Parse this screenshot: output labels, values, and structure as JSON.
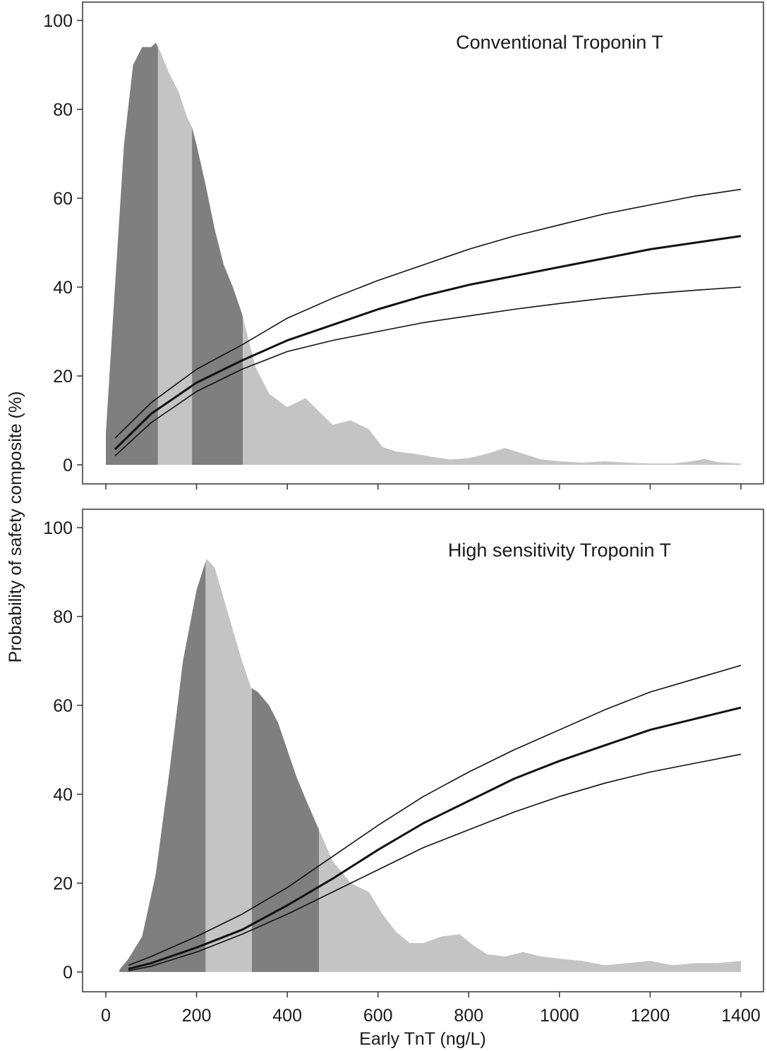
{
  "figure": {
    "ylabel": "Probability of safety composite (%)",
    "xlabel": "Early TnT (ng/L)"
  },
  "colors": {
    "density_light": "#c4c4c4",
    "density_dark": "#7f7f7f",
    "curve": "#111111",
    "frame": "#333333"
  },
  "chart_data": [
    {
      "type": "area",
      "title": "Conventional Troponin T",
      "xlim": [
        0,
        1400
      ],
      "ylim": [
        0,
        100
      ],
      "yticks": [
        0,
        20,
        40,
        60,
        80,
        100
      ],
      "xticks": [
        0,
        200,
        400,
        600,
        800,
        1000,
        1200,
        1400
      ],
      "xtick_labels_shown": false,
      "density": {
        "x": [
          0,
          20,
          40,
          60,
          80,
          100,
          110,
          120,
          140,
          160,
          180,
          190,
          200,
          220,
          240,
          260,
          280,
          300,
          330,
          360,
          400,
          440,
          470,
          500,
          540,
          580,
          610,
          640,
          680,
          720,
          760,
          800,
          840,
          880,
          920,
          960,
          1000,
          1050,
          1100,
          1150,
          1200,
          1250,
          1290,
          1320,
          1350,
          1400
        ],
        "y": [
          7,
          40,
          72,
          90,
          94,
          94,
          95,
          93,
          88,
          84,
          78,
          76,
          72,
          63,
          53,
          45,
          40,
          34,
          22,
          16,
          13,
          15,
          12,
          9,
          10,
          8,
          4,
          3,
          2.5,
          1.8,
          1.2,
          1.5,
          2.5,
          3.8,
          2.5,
          1.2,
          0.8,
          0.5,
          0.8,
          0.5,
          0.3,
          0.3,
          0.8,
          1.3,
          0.6,
          0.3
        ]
      },
      "bands": [
        {
          "from": 0,
          "to": 115,
          "shade": "dark"
        },
        {
          "from": 115,
          "to": 190,
          "shade": "light"
        },
        {
          "from": 190,
          "to": 302,
          "shade": "dark"
        },
        {
          "from": 302,
          "to": 1400,
          "shade": "light"
        }
      ],
      "series": [
        {
          "role": "estimate",
          "x": [
            20,
            100,
            200,
            300,
            400,
            500,
            600,
            700,
            800,
            900,
            1000,
            1100,
            1200,
            1300,
            1400
          ],
          "values": [
            3.5,
            11.5,
            18.5,
            23.5,
            28,
            31.5,
            35,
            38,
            40.5,
            42.5,
            44.5,
            46.5,
            48.5,
            50,
            51.5
          ]
        },
        {
          "role": "upper",
          "x": [
            20,
            100,
            200,
            300,
            400,
            500,
            600,
            700,
            800,
            900,
            1000,
            1100,
            1200,
            1300,
            1400
          ],
          "values": [
            6,
            14,
            21.5,
            27,
            33,
            37.5,
            41.5,
            45,
            48.5,
            51.5,
            54,
            56.5,
            58.5,
            60.5,
            62
          ]
        },
        {
          "role": "lower",
          "x": [
            20,
            100,
            200,
            300,
            400,
            500,
            600,
            700,
            800,
            900,
            1000,
            1100,
            1200,
            1300,
            1400
          ],
          "values": [
            2,
            9.5,
            16.5,
            21.5,
            25.5,
            28,
            30,
            32,
            33.5,
            35,
            36.3,
            37.5,
            38.5,
            39.3,
            40
          ]
        }
      ]
    },
    {
      "type": "area",
      "title": "High sensitivity Troponin T",
      "xlim": [
        0,
        1400
      ],
      "ylim": [
        0,
        100
      ],
      "yticks": [
        0,
        20,
        40,
        60,
        80,
        100
      ],
      "xticks": [
        0,
        200,
        400,
        600,
        800,
        1000,
        1200,
        1400
      ],
      "xtick_labels_shown": true,
      "density": {
        "x": [
          30,
          50,
          80,
          110,
          140,
          170,
          200,
          222,
          240,
          260,
          280,
          300,
          320,
          335,
          360,
          380,
          400,
          420,
          440,
          470,
          500,
          540,
          580,
          610,
          640,
          670,
          700,
          740,
          780,
          810,
          840,
          880,
          920,
          960,
          1000,
          1050,
          1100,
          1150,
          1200,
          1250,
          1300,
          1350,
          1400
        ],
        "y": [
          0.5,
          3,
          8,
          22,
          45,
          70,
          86,
          93,
          91,
          84,
          77,
          70,
          64,
          63,
          60,
          56,
          50,
          44,
          39,
          32,
          25,
          20,
          18,
          13,
          9,
          6.5,
          6.5,
          8,
          8.5,
          6,
          4,
          3.5,
          4.5,
          3.5,
          3,
          2.5,
          1.5,
          2,
          2.5,
          1.5,
          2,
          2,
          2.5
        ]
      },
      "bands": [
        {
          "from": 30,
          "to": 220,
          "shade": "dark"
        },
        {
          "from": 220,
          "to": 322,
          "shade": "light"
        },
        {
          "from": 322,
          "to": 470,
          "shade": "dark"
        },
        {
          "from": 470,
          "to": 1400,
          "shade": "light"
        }
      ],
      "series": [
        {
          "role": "estimate",
          "x": [
            50,
            100,
            200,
            300,
            400,
            500,
            600,
            700,
            800,
            900,
            1000,
            1100,
            1200,
            1300,
            1400
          ],
          "values": [
            0.7,
            2,
            5.5,
            9.5,
            15,
            21,
            27.5,
            33.5,
            38.5,
            43.5,
            47.5,
            51,
            54.5,
            57,
            59.5
          ]
        },
        {
          "role": "upper",
          "x": [
            50,
            100,
            200,
            300,
            400,
            500,
            600,
            700,
            800,
            900,
            1000,
            1100,
            1200,
            1300,
            1400
          ],
          "values": [
            1.5,
            3.5,
            8,
            13,
            19,
            26,
            33,
            39.5,
            45,
            50,
            54.5,
            59,
            63,
            66,
            69
          ]
        },
        {
          "role": "lower",
          "x": [
            50,
            100,
            200,
            300,
            400,
            500,
            600,
            700,
            800,
            900,
            1000,
            1100,
            1200,
            1300,
            1400
          ],
          "values": [
            0.3,
            1.3,
            4.5,
            8.5,
            13,
            18,
            23,
            28,
            32,
            36,
            39.5,
            42.5,
            45,
            47,
            49
          ]
        }
      ]
    }
  ]
}
